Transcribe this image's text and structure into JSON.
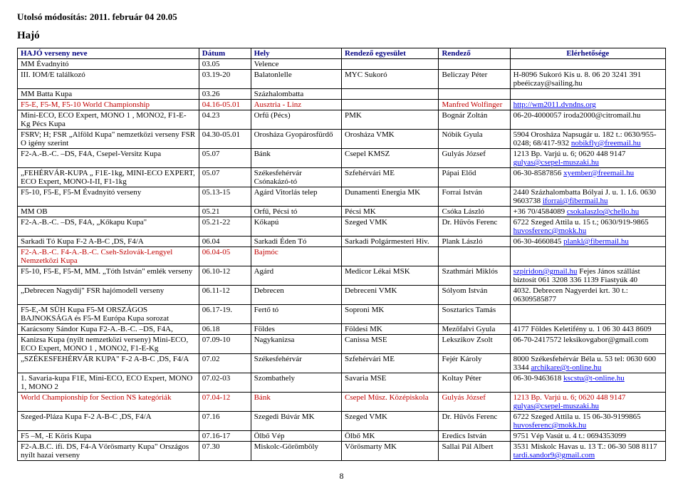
{
  "header": {
    "last_modified_label": "Utolsó módosítás:",
    "last_modified_value": "2011. február 04 20.05",
    "section_title": "Hajó",
    "page_number": "8"
  },
  "table": {
    "columns": [
      "HAJÓ verseny neve",
      "Dátum",
      "Hely",
      "Rendező egyesület",
      "Rendező",
      "Elérhetősége"
    ],
    "rows": [
      {
        "hl": false,
        "c": [
          "MM Évadnyitó",
          "03.05",
          "Velence",
          "",
          "",
          ""
        ]
      },
      {
        "hl": false,
        "c": [
          "III. IOM/E találkozó",
          "03.19-20",
          "Balatonlelle",
          "MYC Sukoró",
          "Beliczay Péter",
          "H-8096 Sukoró Kis u. 8. 06 20 3241 391 pbeéiczay@sailing.hu"
        ]
      },
      {
        "hl": false,
        "c": [
          "MM Batta Kupa",
          "03.26",
          "Százhalombatta",
          "",
          "",
          ""
        ]
      },
      {
        "hl": true,
        "c": [
          "F5-E, F5-M, F5-10 World Championship",
          "04.16-05.01",
          "Ausztria - Linz",
          "",
          "Manfred Wolfinger",
          ""
        ],
        "link": "http://wm2011.dvndns.org"
      },
      {
        "hl": false,
        "c": [
          "Mini-ECO, ECO Expert, MONO 1 , MONO2, F1-E-Kg Pécs Kupa",
          "04.23",
          "Orfű (Pécs)",
          "PMK",
          "Bognár Zoltán",
          "06-20-4000057 iroda2000@citromail.hu"
        ]
      },
      {
        "hl": false,
        "c": [
          "FSRV; H; FSR „Alföld Kupa\" nemzetközi verseny FSR O igény szerint",
          "04.30-05.01",
          "Orosháza Gyopárosfürdő",
          "Orosháza VMK",
          "Nóbik Gyula",
          "5904 Orosháza Napsugár u. 182  t.: 0630/955-0248; 68/417-932 "
        ],
        "link": "nobikfly@freemail.hu"
      },
      {
        "hl": false,
        "c": [
          "F2-A.-B.-C. –DS, F4A, Csepel-Versitz Kupa",
          "05.07",
          "Bánk",
          "Csepel KMSZ",
          "Gulyás József",
          "1213 Bp. Varjú u. 6; 0620 448 9147 "
        ],
        "link": "gulyas@csepel-muszaki.hu"
      },
      {
        "hl": false,
        "c": [
          "„FEHÉRVÁR-KUPA „ F1E-1kg, MINI-ECO EXPERT, ECO Expert, MONO-I-II, F1-1kg",
          "05.07",
          "Székesfehérvár Csónakázó-tó",
          "Szfehérvári ME",
          "Pápai Előd",
          "06-30-8587856 "
        ],
        "link": "xyember@freemail.hu"
      },
      {
        "hl": false,
        "c": [
          "F5-10, F5-E, F5-M Évadnyitó verseny",
          "05.13-15",
          "Agárd Vitorlás telep",
          "Dunamenti Energia MK",
          "Forrai István",
          "2440 Százhalombatta Bólyai J. u. 1. I.6. 0630 9603738 "
        ],
        "link": "iforrai@fibermail.hu"
      },
      {
        "hl": false,
        "c": [
          "MM OB",
          "05.21",
          "Orfű, Pécsi tó",
          "Pécsi MK",
          "Csóka László",
          "+36 70/4584089  "
        ],
        "link": "csokalaszlo@chello.hu"
      },
      {
        "hl": false,
        "c": [
          "F2-A.-B.-C. –DS, F4A, „Kőkapu Kupa\"",
          "05.21-22",
          "Kőkapú",
          "Szeged VMK",
          "Dr. Hűvös Ferenc",
          "6722 Szeged Attila u. 15 t.; 0630/919-9865 "
        ],
        "link": "huvosferenc@mokk.hu"
      },
      {
        "hl": false,
        "c": [
          "Sarkadi Tó Kupa F-2 A-B-C ,DS, F4/A",
          "06.04",
          "Sarkadi Éden Tó",
          "Sarkadi Polgármesteri Hiv.",
          "Plank László",
          "06-30-4660845 "
        ],
        "link": "plankl@fibermail.hu"
      },
      {
        "hl": true,
        "c": [
          "F2-A.-B.-C.  F4-A.-B.-C. Cseh-Szlovák-Lengyel Nemzetközi Kupa",
          "06.04-05",
          "Bajmóc",
          "",
          "",
          ""
        ]
      },
      {
        "hl": false,
        "c": [
          "F5-10, F5-E, F5-M, MM. „Tóth István\" emlék verseny",
          "06.10-12",
          "Agárd",
          "Medicor Lékai MSK",
          "Szathmári Miklós",
          "szpiridon@gmail.hu  Fejes János szállást biztosít 061 3208 336 1139 Fiastyúk 40"
        ],
        "linkPrefix": true
      },
      {
        "hl": false,
        "c": [
          "„Debrecen Nagydíj\" FSR hajómodell verseny",
          "06.11-12",
          "Debrecen",
          "Debreceni VMK",
          "Sólyom István",
          "4032. Debrecen Nagyerdei krt. 30  t.: 06309585877"
        ]
      },
      {
        "hl": false,
        "c": [
          "F5-E,-M SÜH Kupa F5-M ORSZÁGOS BAJNOKSÁGA és F5-M Európa Kupa sorozat",
          "06.17-19.",
          "Fertő tó",
          "Soproni MK",
          "Sosztarics Tamás",
          ""
        ]
      },
      {
        "hl": false,
        "c": [
          "Karácsony Sándor Kupa F2-A.-B.-C. –DS, F4A,",
          "06.18",
          "Földes",
          "Földesi MK",
          "Mezőfalvi Gyula",
          "4177 Földes Keletifény u. 1 06 30 443 8609"
        ]
      },
      {
        "hl": false,
        "c": [
          "Kanizsa Kupa (nyílt nemzetközi verseny) Mini-ECO, ECO Expert, MONO 1 , MONO2, F1-E-Kg",
          "07.09-10",
          "Nagykanizsa",
          "Canissa MSE",
          "Lekszikov Zsolt",
          "06-70-2417572 leksikovgabor@gmail.com"
        ]
      },
      {
        "hl": false,
        "c": [
          "„SZÉKESFEHÉRVÁR KUPA\" F-2 A-B-C ,DS, F4/A",
          "07.02",
          "Székesfehérvár",
          "Szfehérvári ME",
          "Fejér Károly",
          "8000 Székesfehérvár Béla u. 53 tel: 0630 600 3344 "
        ],
        "link": "archikare@t-online.hu"
      },
      {
        "hl": false,
        "c": [
          "1. Savaria-kupa F1E, Mini-ECO, ECO Expert, MONO 1, MONO 2",
          "07.02-03",
          "Szombathely",
          "Savaria MSE",
          "Koltay Péter",
          "06-30-9463618 "
        ],
        "link": "kscstu@t-online.hu"
      },
      {
        "hl": true,
        "c": [
          "World Championship for Section NS kategóriák",
          "07.04-12",
          "Bánk",
          "Csepel Műsz. Középiskola",
          "Gulyás József",
          "1213 Bp. Varjú u. 6; 0620 448 9147 "
        ],
        "link": "gulyas@csepel-muszaki.hu"
      },
      {
        "hl": false,
        "c": [
          "Szeged-Pláza Kupa F-2 A-B-C ,DS, F4/A",
          "07.16",
          "Szegedi Búvár MK",
          "Szeged VMK",
          "Dr. Hűvös Ferenc",
          "6722 Szeged Attila u. 15 06-30-9199865 "
        ],
        "link": "huvosferenc@mokk.hu"
      },
      {
        "hl": false,
        "c": [
          "F5 –M, -E  Köris Kupa",
          "07.16-17",
          "Ölbő Vép",
          "Ölbő MK",
          "Eredics István",
          "9751 Vép Vasút u. 4 t.: 0694353099"
        ]
      },
      {
        "hl": false,
        "c": [
          "F2-A.B.C. ifi. DS, F4-A Vörösmarty Kupa\" Országos nyílt hazai verseny",
          "07.30",
          "Miskolc-Görömböly",
          "Vörösmarty MK",
          "Sallai Pál Albert",
          "3531 Miskolc Havas u. 13 T.:  06-30 508 8117 "
        ],
        "link": "tardi.sandor9@gmail.com"
      }
    ]
  }
}
